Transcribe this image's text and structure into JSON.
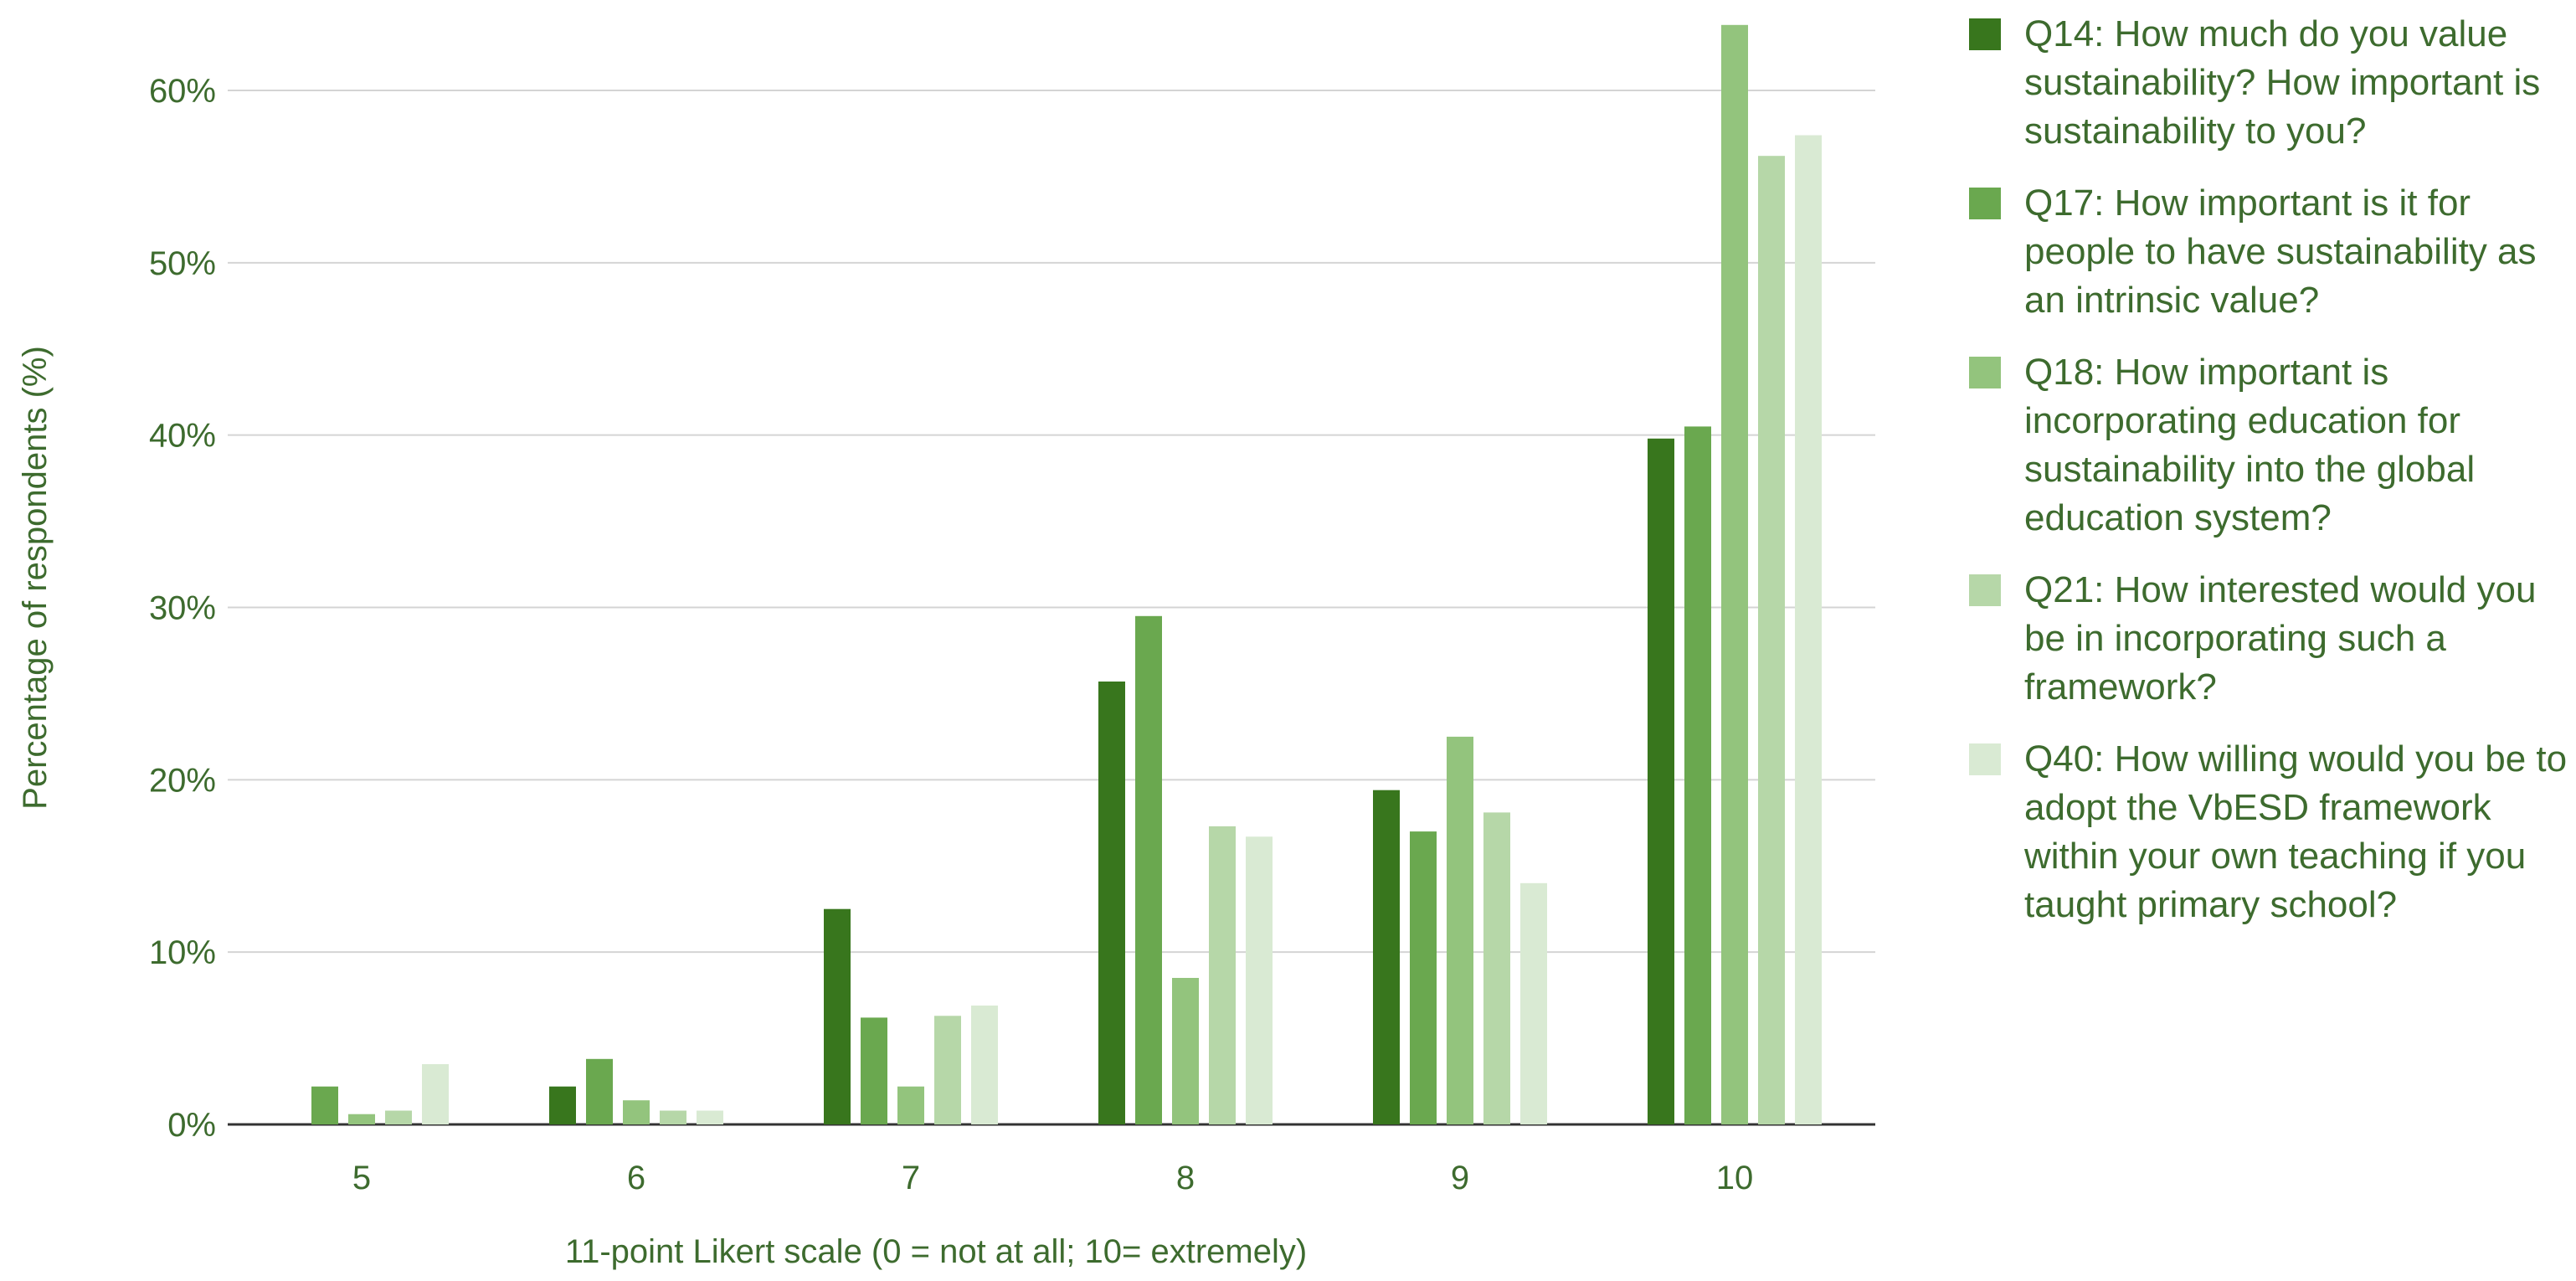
{
  "chart_data": {
    "type": "bar",
    "categories": [
      "5",
      "6",
      "7",
      "8",
      "9",
      "10"
    ],
    "series": [
      {
        "name": "Q14: How much do you value sustainability? How important is sustainability to you?",
        "color": "#38761d",
        "values": [
          0,
          2.2,
          12.5,
          25.7,
          19.4,
          39.8
        ]
      },
      {
        "name": "Q17: How important is it for people to have sustainability as an intrinsic value?",
        "color": "#6aa84f",
        "values": [
          2.2,
          3.8,
          6.2,
          29.5,
          17.0,
          40.5
        ]
      },
      {
        "name": "Q18: How important is incorporating education for sustainability into the global education system?",
        "color": "#93c47d",
        "values": [
          0.6,
          1.4,
          2.2,
          8.5,
          22.5,
          63.8
        ]
      },
      {
        "name": "Q21: How interested would you be in incorporating such a framework?",
        "color": "#b6d7a8",
        "values": [
          0.8,
          0.8,
          6.3,
          17.3,
          18.1,
          56.2
        ]
      },
      {
        "name": "Q40: How willing would you be to adopt the VbESD framework within your own teaching if you taught primary school?",
        "color": "#d9ead3",
        "values": [
          3.5,
          0.8,
          6.9,
          16.7,
          14.0,
          57.4
        ]
      }
    ],
    "title": "",
    "xlabel": "11-point Likert scale (0 = not at all; 10= extremely)",
    "ylabel": "Percentage of respondents (%)",
    "ylim": [
      0,
      65
    ],
    "yticks": [
      0,
      10,
      20,
      30,
      40,
      50,
      60
    ],
    "ytick_labels": [
      "0%",
      "10%",
      "20%",
      "30%",
      "40%",
      "50%",
      "60%"
    ],
    "grid": true,
    "legend_position": "right"
  }
}
